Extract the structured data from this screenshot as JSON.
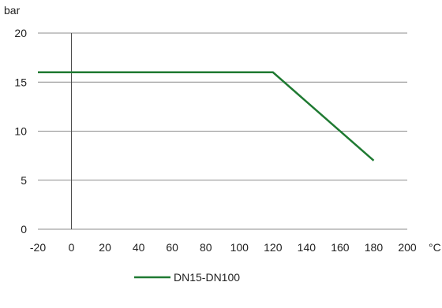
{
  "chart_data": {
    "type": "line",
    "title": "",
    "xlabel": "°C",
    "ylabel": "bar",
    "xlim": [
      -20,
      200
    ],
    "ylim": [
      0,
      20
    ],
    "x_ticks": [
      -20,
      0,
      20,
      40,
      60,
      80,
      100,
      120,
      140,
      160,
      180,
      200
    ],
    "y_ticks": [
      0,
      5,
      10,
      15,
      20
    ],
    "grid": "horizontal",
    "legend_position": "bottom",
    "series": [
      {
        "name": "DN15-DN100",
        "color": "#1f7a32",
        "points": [
          [
            -20,
            16
          ],
          [
            120,
            16
          ],
          [
            180,
            7
          ]
        ]
      }
    ]
  }
}
